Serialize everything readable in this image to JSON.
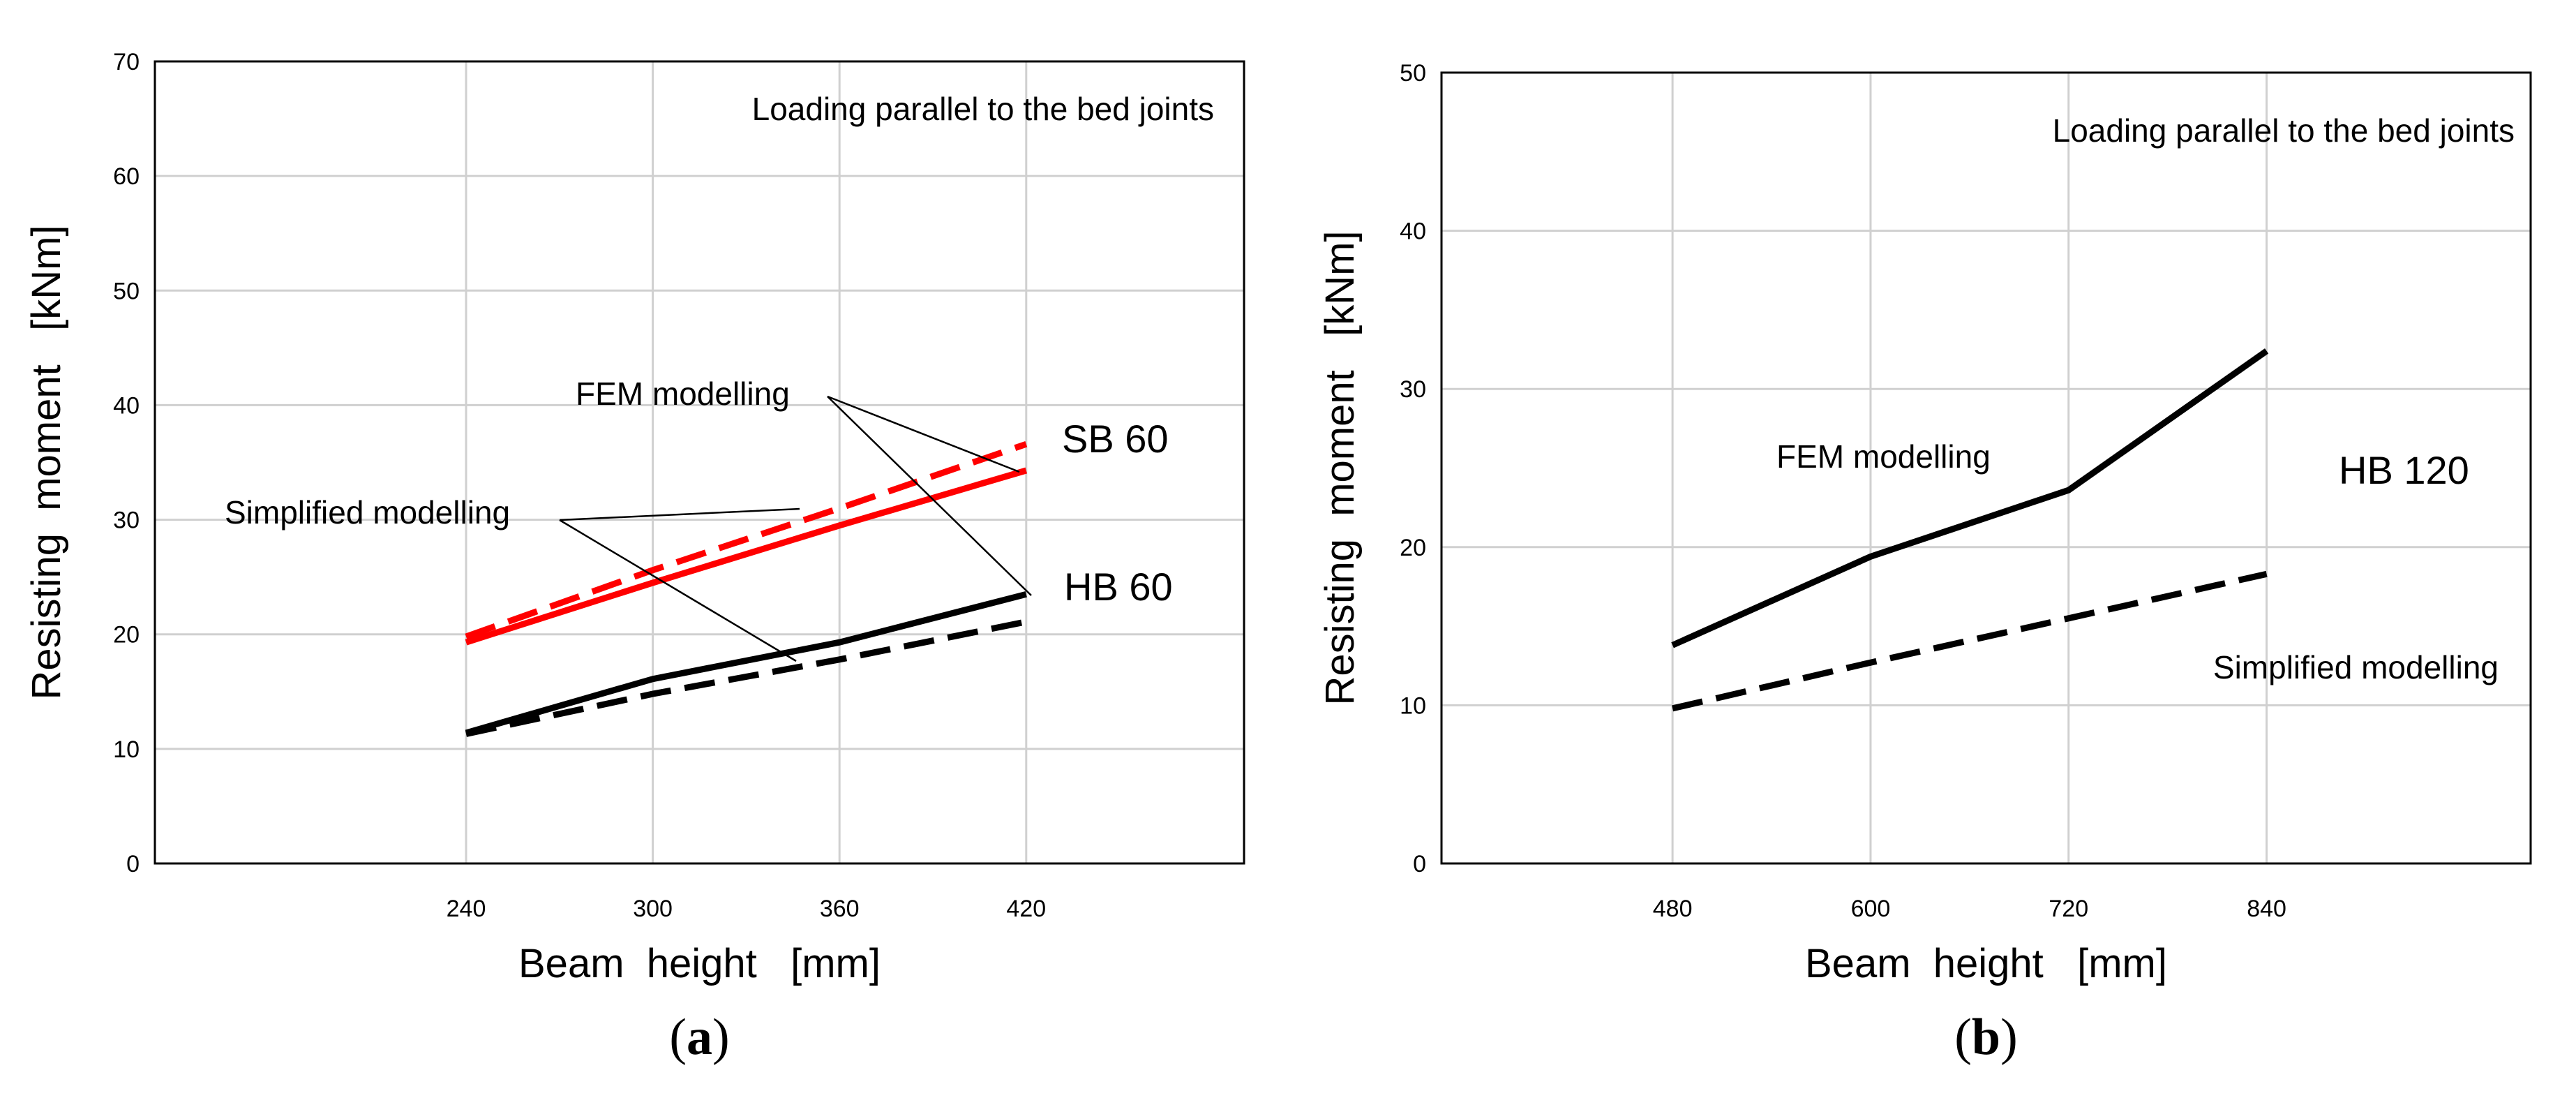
{
  "chart_data": [
    {
      "type": "line",
      "panel_label": "a",
      "title": "Loading parallel to the bed joints",
      "xlabel": "Beam  height   [mm]",
      "ylabel": "Resisting  moment   [kNm]",
      "xlim": [
        140,
        490
      ],
      "ylim": [
        0,
        70
      ],
      "xticks": [
        240,
        300,
        360,
        420
      ],
      "xtick_labels": [
        "240",
        "300",
        "360",
        "420"
      ],
      "yticks": [
        0,
        10,
        20,
        30,
        40,
        50,
        60,
        70
      ],
      "ytick_labels": [
        "0",
        "10",
        "20",
        "30",
        "40",
        "50",
        "60",
        "70"
      ],
      "grid": true,
      "series": [
        {
          "name": "SB 60 FEM modelling",
          "color": "#ff0000",
          "dash": "solid",
          "x": [
            240,
            300,
            360,
            420
          ],
          "values": [
            19.3,
            24.5,
            29.5,
            34.3
          ]
        },
        {
          "name": "SB 60 Simplified modelling",
          "color": "#ff0000",
          "dash": "dashed",
          "x": [
            240,
            300,
            360,
            420
          ],
          "values": [
            19.8,
            25.6,
            31.0,
            36.6
          ]
        },
        {
          "name": "HB 60 FEM modelling",
          "color": "#000000",
          "dash": "solid",
          "x": [
            240,
            300,
            360,
            420
          ],
          "values": [
            11.4,
            16.1,
            19.3,
            23.5
          ]
        },
        {
          "name": "HB 60 Simplified modelling",
          "color": "#000000",
          "dash": "dashed",
          "x": [
            240,
            300,
            360,
            420
          ],
          "values": [
            11.3,
            14.8,
            17.8,
            21.1
          ]
        }
      ],
      "annotations": {
        "fem": "FEM modelling",
        "simplified": "Simplified modelling",
        "sb": "SB 60",
        "hb": "HB 60"
      }
    },
    {
      "type": "line",
      "panel_label": "b",
      "title": "Loading parallel to the bed joints",
      "xlabel": "Beam  height   [mm]",
      "ylabel": "Resisting  moment   [kNm]",
      "xlim": [
        340,
        1000
      ],
      "ylim": [
        0,
        50
      ],
      "xticks": [
        480,
        600,
        720,
        840
      ],
      "xtick_labels": [
        "480",
        "600",
        "720",
        "840"
      ],
      "yticks": [
        0,
        10,
        20,
        30,
        40,
        50
      ],
      "ytick_labels": [
        "0",
        "10",
        "20",
        "30",
        "40",
        "50"
      ],
      "grid": true,
      "series": [
        {
          "name": "HB 120 FEM modelling",
          "color": "#000000",
          "dash": "solid",
          "x": [
            480,
            600,
            720,
            840
          ],
          "values": [
            13.8,
            19.4,
            23.6,
            32.4
          ]
        },
        {
          "name": "HB 120 Simplified modelling",
          "color": "#000000",
          "dash": "dashed",
          "x": [
            480,
            600,
            720,
            840
          ],
          "values": [
            9.8,
            12.7,
            15.5,
            18.3
          ]
        }
      ],
      "annotations": {
        "fem": "FEM modelling",
        "simplified": "Simplified modelling",
        "hb": "HB 120"
      }
    }
  ]
}
